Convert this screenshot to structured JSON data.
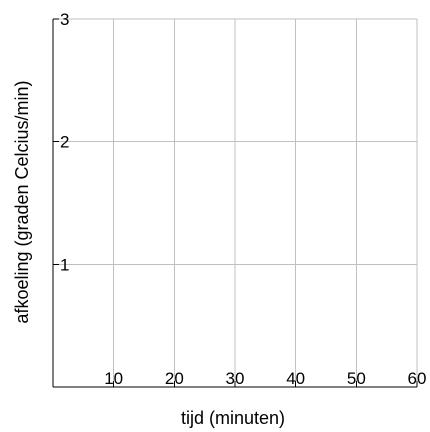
{
  "chart_data": {
    "type": "line",
    "title": "",
    "xlabel": "tijd (minuten)",
    "ylabel": "afkoeling (graden Celcius/min)",
    "xlim": [
      0,
      60
    ],
    "ylim": [
      0,
      3
    ],
    "x_ticks": [
      10,
      20,
      30,
      40,
      50,
      60
    ],
    "y_ticks": [
      1,
      2,
      3
    ],
    "grid": true,
    "series": []
  },
  "colors": {
    "grid": "#c0c0c0",
    "axis": "#000000",
    "background": "#ffffff"
  }
}
